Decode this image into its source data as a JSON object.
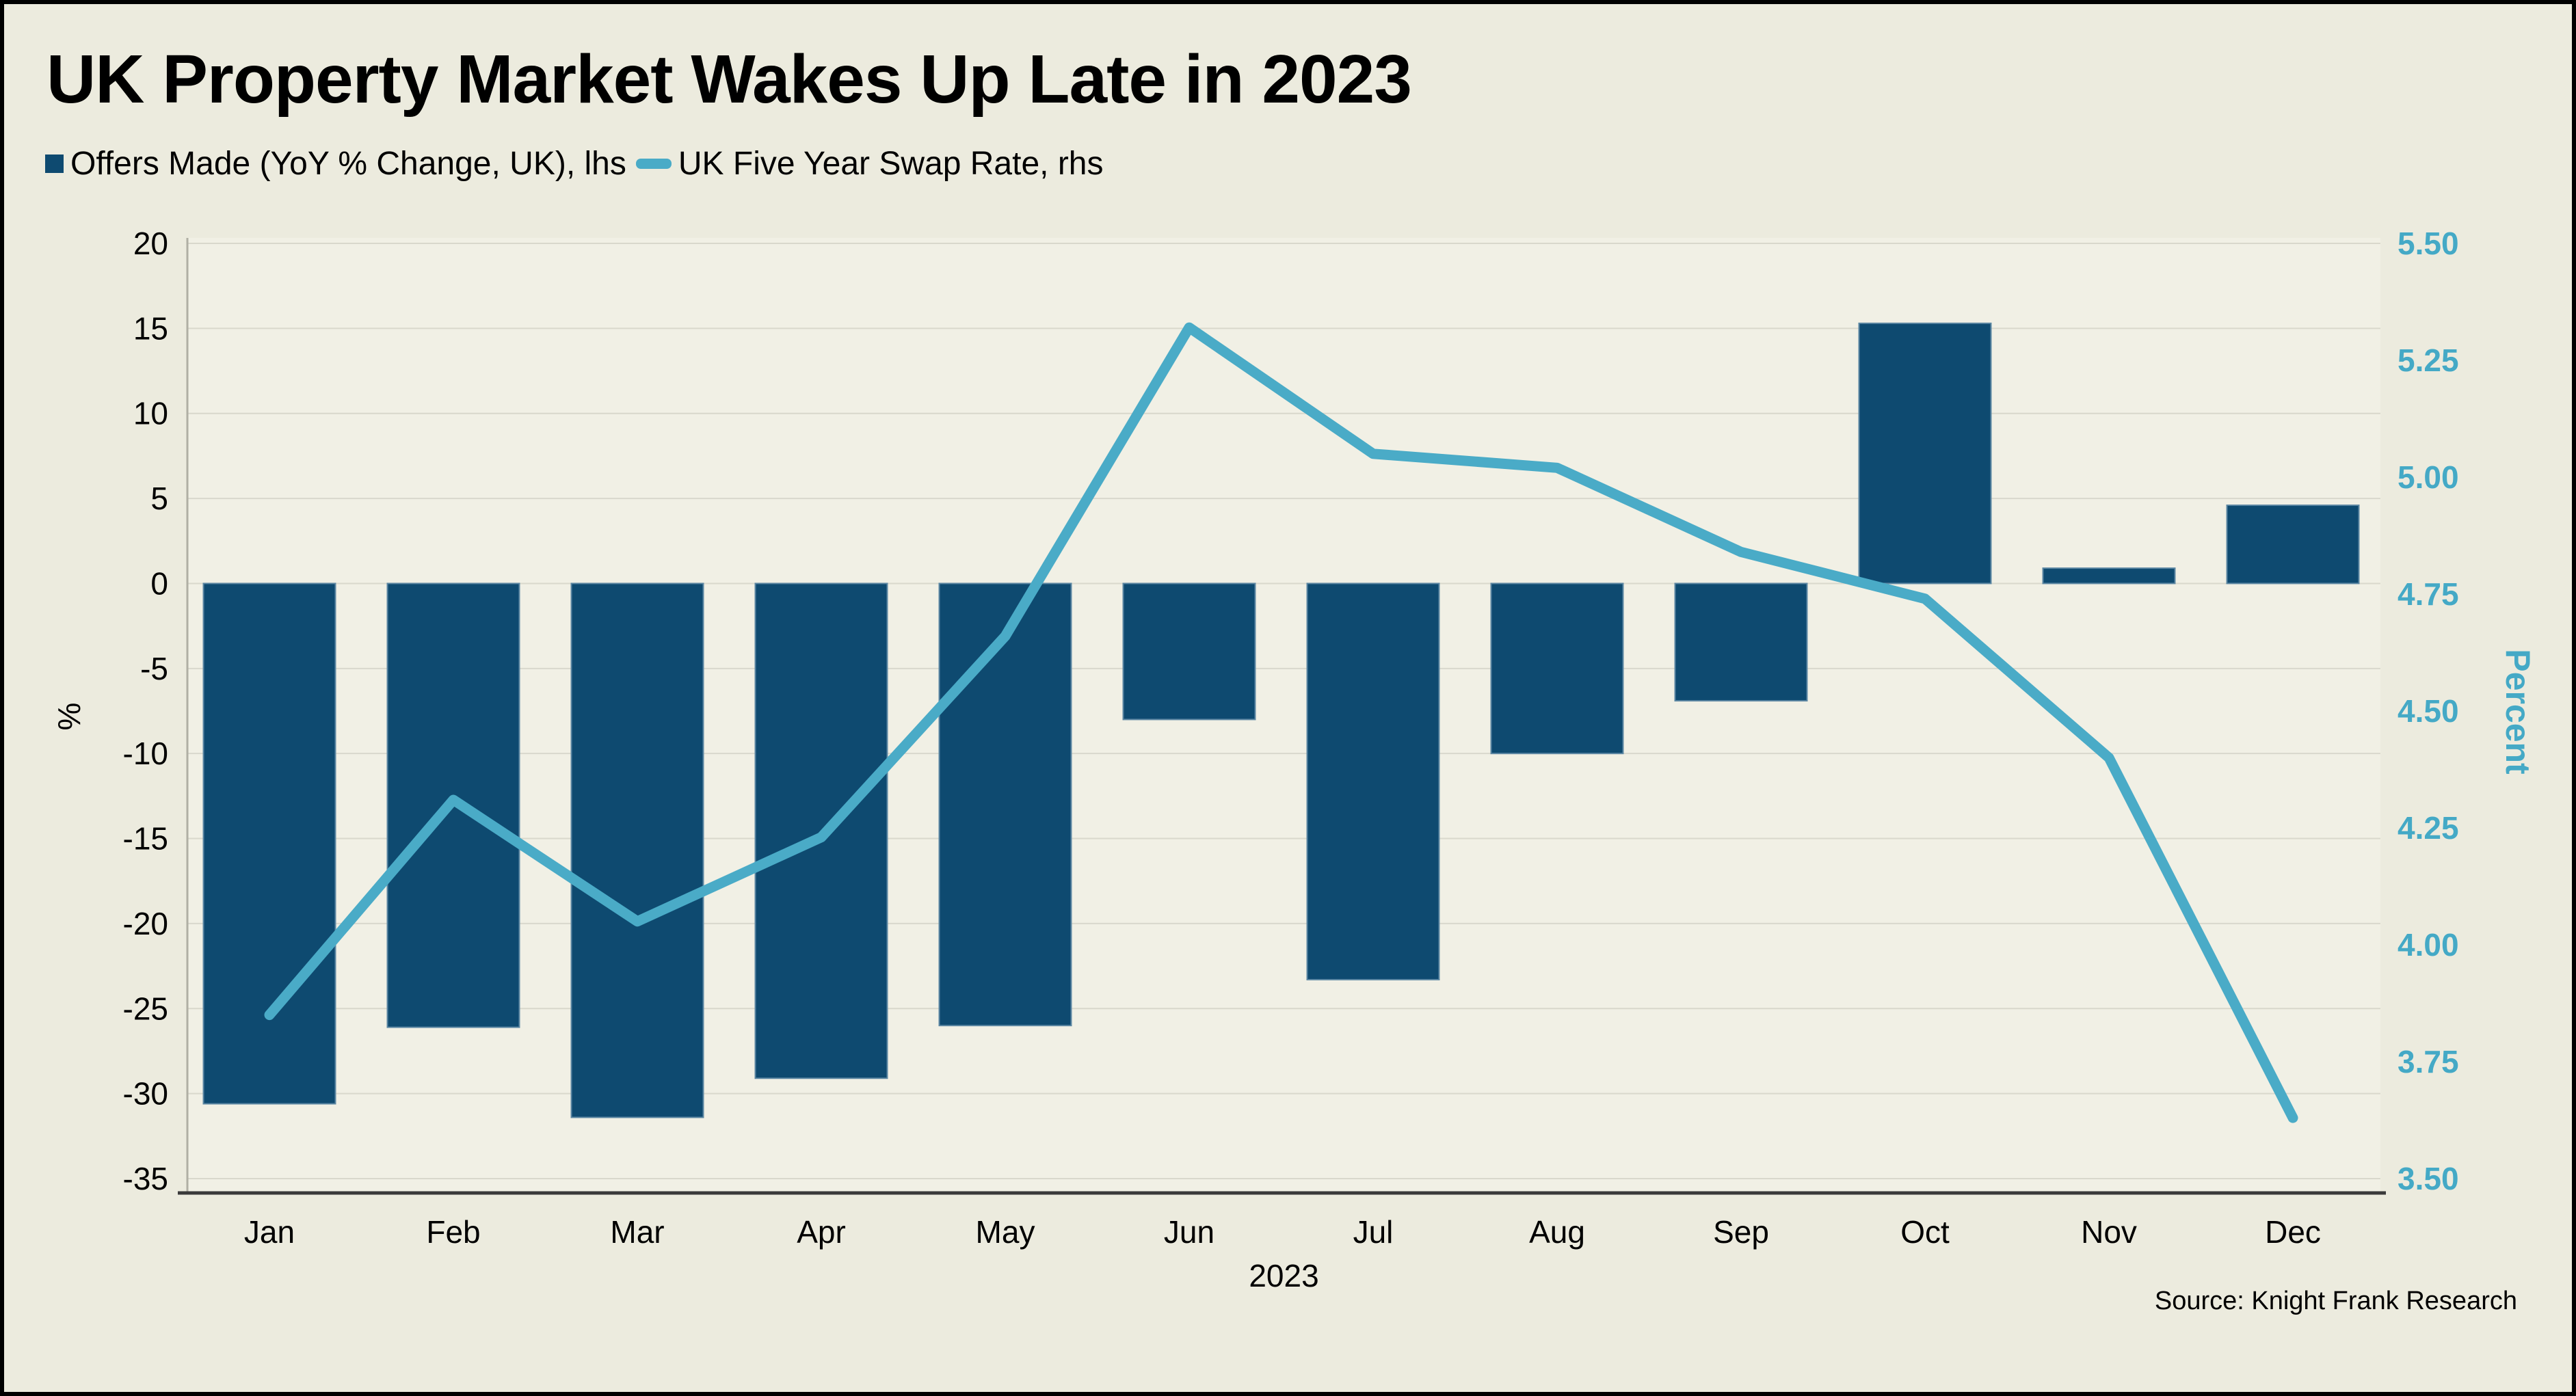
{
  "header": {
    "title": "UK Property Market Wakes Up Late in 2023"
  },
  "legend": {
    "items": [
      {
        "label": "Offers Made (YoY % Change, UK), lhs",
        "swatch": "square",
        "color": "#0e4a70"
      },
      {
        "label": "UK Five Year Swap Rate, rhs",
        "swatch": "line",
        "color": "#4aabc7"
      }
    ]
  },
  "source": {
    "text": "Source: Knight Frank Research"
  },
  "colors": {
    "bar": "#0e4a70",
    "bar_edge": "#5c87a3",
    "line": "#4aabc7",
    "right_axis_text": "#44a9c6",
    "left_axis_text": "#000000",
    "background": "#ecebde",
    "plot_background": "#f1f0e5",
    "gridline": "#d9d8cc",
    "baseline": "#3a3a3a",
    "axis_line": "#b0afa4"
  },
  "chart_data": {
    "type": "bar",
    "title": "UK Property Market Wakes Up Late in 2023",
    "categories": [
      "Jan",
      "Feb",
      "Mar",
      "Apr",
      "May",
      "Jun",
      "Jul",
      "Aug",
      "Sep",
      "Oct",
      "Nov",
      "Dec"
    ],
    "series": [
      {
        "name": "Offers Made (YoY % Change, UK)",
        "type": "bar",
        "axis": "left",
        "color": "#0e4a70",
        "values": [
          -30.6,
          -26.1,
          -31.4,
          -29.1,
          -26.0,
          -8.0,
          -23.3,
          -10.0,
          -6.9,
          15.3,
          0.9,
          4.6
        ]
      },
      {
        "name": "UK Five Year Swap Rate",
        "type": "line",
        "axis": "right",
        "color": "#4aabc7",
        "values": [
          3.85,
          4.31,
          4.05,
          4.23,
          4.66,
          5.32,
          5.05,
          5.02,
          4.84,
          4.74,
          4.4,
          3.63
        ]
      }
    ],
    "left_axis": {
      "label": "%",
      "min": -35,
      "max": 20,
      "step": 5,
      "ticks": [
        "20",
        "15",
        "10",
        "5",
        "0",
        "-5",
        "-10",
        "-15",
        "-20",
        "-25",
        "-30",
        "-35"
      ]
    },
    "right_axis": {
      "label": "Percent",
      "min": 3.5,
      "max": 5.5,
      "step": 0.25,
      "ticks": [
        "5.50",
        "5.25",
        "5.00",
        "4.75",
        "4.50",
        "4.25",
        "4.00",
        "3.75",
        "3.50"
      ]
    },
    "x_axis": {
      "label": "2023"
    },
    "grid": true,
    "legend_position": "top-left"
  }
}
